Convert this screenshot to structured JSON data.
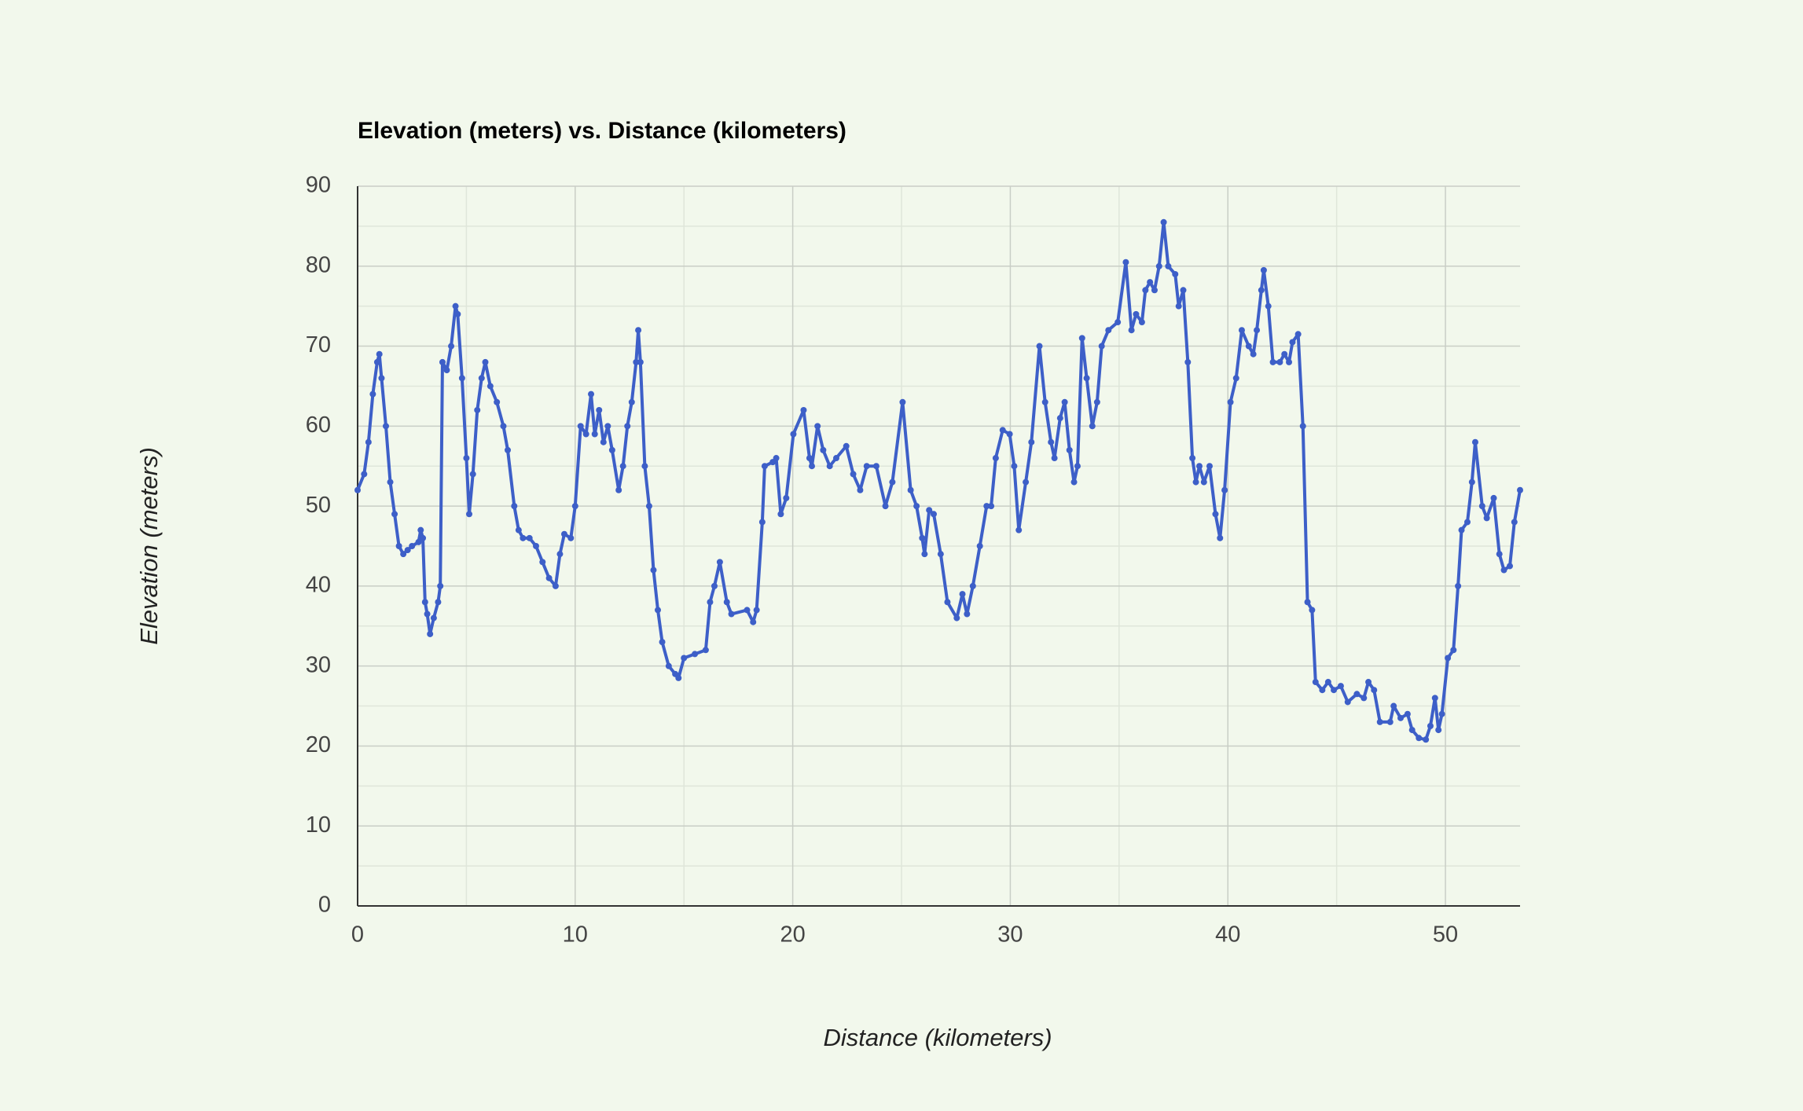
{
  "chart_data": {
    "type": "line",
    "title": "Elevation (meters) vs. Distance (kilometers)",
    "x_label": "Distance (kilometers)",
    "y_label": "Elevation (meters)",
    "color": "#3d5fc8",
    "grid": true,
    "xlim": [
      0,
      53.43
    ],
    "ylim": [
      0,
      90
    ],
    "xticks": [
      0,
      10,
      20,
      30,
      40,
      50
    ],
    "yticks": [
      0,
      10,
      20,
      30,
      40,
      50,
      60,
      70,
      80,
      90
    ],
    "xminorticks": [
      5,
      15,
      25,
      35,
      45
    ],
    "yminorticks": [
      5,
      15,
      25,
      35,
      45,
      55,
      65,
      75,
      85
    ],
    "x": [
      0,
      0.3,
      0.5,
      0.7,
      0.9,
      1.0,
      1.1,
      1.3,
      1.5,
      1.7,
      1.9,
      2.1,
      2.3,
      2.5,
      2.8,
      2.9,
      3.0,
      3.1,
      3.2,
      3.33,
      3.5,
      3.7,
      3.8,
      3.9,
      4.1,
      4.3,
      4.5,
      4.6,
      4.8,
      5.0,
      5.13,
      5.3,
      5.5,
      5.7,
      5.87,
      6.1,
      6.4,
      6.7,
      6.9,
      7.2,
      7.4,
      7.6,
      7.9,
      8.2,
      8.5,
      8.8,
      9.1,
      9.3,
      9.5,
      9.8,
      10.0,
      10.25,
      10.5,
      10.73,
      10.9,
      11.1,
      11.3,
      11.5,
      11.7,
      12.0,
      12.2,
      12.4,
      12.6,
      12.8,
      12.9,
      13.0,
      13.2,
      13.4,
      13.6,
      13.8,
      14.0,
      14.3,
      14.6,
      14.75,
      15.0,
      15.5,
      16.0,
      16.2,
      16.4,
      16.65,
      16.97,
      17.18,
      17.9,
      18.18,
      18.34,
      18.6,
      18.71,
      19.08,
      19.24,
      19.45,
      19.7,
      20.03,
      20.5,
      20.77,
      20.88,
      21.14,
      21.4,
      21.7,
      22.0,
      22.46,
      22.78,
      23.1,
      23.4,
      23.84,
      24.26,
      24.58,
      25.05,
      25.42,
      25.69,
      25.95,
      26.06,
      26.27,
      26.48,
      26.8,
      27.11,
      27.54,
      27.8,
      28.01,
      28.28,
      28.6,
      28.91,
      29.12,
      29.33,
      29.65,
      29.97,
      30.18,
      30.39,
      30.71,
      30.97,
      31.34,
      31.6,
      31.87,
      32.03,
      32.29,
      32.5,
      32.72,
      32.93,
      33.09,
      33.3,
      33.51,
      33.77,
      33.99,
      34.2,
      34.51,
      34.94,
      35.31,
      35.57,
      35.78,
      36.05,
      36.21,
      36.42,
      36.63,
      36.84,
      37.05,
      37.26,
      37.58,
      37.74,
      37.95,
      38.16,
      38.37,
      38.53,
      38.69,
      38.9,
      39.16,
      39.43,
      39.64,
      39.85,
      40.12,
      40.38,
      40.64,
      40.96,
      41.17,
      41.33,
      41.54,
      41.65,
      41.86,
      42.07,
      42.39,
      42.6,
      42.81,
      42.97,
      43.23,
      43.45,
      43.66,
      43.87,
      44.03,
      44.34,
      44.61,
      44.87,
      45.19,
      45.51,
      45.93,
      46.25,
      46.46,
      46.72,
      46.99,
      47.46,
      47.62,
      47.94,
      48.26,
      48.47,
      48.78,
      49.1,
      49.31,
      49.52,
      49.68,
      49.84,
      50.11,
      50.37,
      50.58,
      50.74,
      51.01,
      51.22,
      51.37,
      51.69,
      51.9,
      52.22,
      52.48,
      52.69,
      52.96,
      53.17,
      53.43
    ],
    "values": [
      52,
      54,
      58,
      64,
      68,
      69,
      66,
      60,
      53,
      49,
      45,
      44,
      44.5,
      45,
      45.5,
      47,
      46,
      38,
      36.5,
      34,
      36,
      38,
      40,
      68,
      67,
      70,
      75,
      74,
      66,
      56,
      49,
      54,
      62,
      66,
      68,
      65,
      63,
      60,
      57,
      50,
      47,
      46,
      46,
      45,
      43,
      41,
      40,
      44,
      46.5,
      46,
      50,
      60,
      59,
      64,
      59,
      62,
      58,
      60,
      57,
      52,
      55,
      60,
      63,
      68,
      72,
      68,
      55,
      50,
      42,
      37,
      33,
      30,
      29,
      28.5,
      31,
      31.5,
      32,
      38,
      40,
      43,
      38,
      36.5,
      37,
      35.5,
      37,
      48,
      55,
      55.5,
      56,
      49,
      51,
      59,
      62,
      56,
      55,
      60,
      57,
      55,
      56,
      57.5,
      54,
      52,
      55,
      55,
      50,
      53,
      63,
      52,
      50,
      46,
      44,
      49.5,
      49,
      44,
      38,
      36,
      39,
      36.5,
      40,
      45,
      50,
      50,
      56,
      59.5,
      59,
      55,
      47,
      53,
      58,
      70,
      63,
      58,
      56,
      61,
      63,
      57,
      53,
      55,
      71,
      66,
      60,
      63,
      70,
      72,
      73,
      80.5,
      72,
      74,
      73,
      77,
      78,
      77,
      80,
      85.5,
      80,
      79,
      75,
      77,
      68,
      56,
      53,
      55,
      53,
      55,
      49,
      46,
      52,
      63,
      66,
      72,
      70,
      69,
      72,
      77,
      79.5,
      75,
      68,
      68,
      69,
      68,
      70.5,
      71.5,
      60,
      38,
      37,
      28,
      27,
      28,
      27,
      27.5,
      25.5,
      26.5,
      26,
      28,
      27,
      23,
      23,
      25,
      23.5,
      24,
      22,
      21,
      20.8,
      22.5,
      26,
      22,
      24,
      31,
      32,
      40,
      47,
      48,
      53,
      58,
      50,
      48.5,
      51,
      44,
      42,
      42.5,
      48,
      52
    ]
  }
}
